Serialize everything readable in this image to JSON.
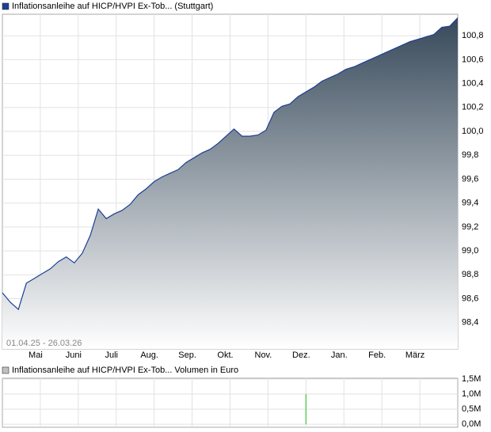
{
  "chart_data": [
    {
      "type": "area",
      "title": "Inflationsanleihe auf HICP/HVPI Ex-Tob... (Stuttgart)",
      "range_label": "01.04.25 - 26.03.26",
      "month_labels": [
        "Mai",
        "Juni",
        "Juli",
        "Aug.",
        "Sep.",
        "Okt.",
        "Nov.",
        "Dez.",
        "Jan.",
        "Feb.",
        "März"
      ],
      "values": [
        98.65,
        98.57,
        98.51,
        98.73,
        98.77,
        98.81,
        98.85,
        98.91,
        98.95,
        98.9,
        98.98,
        99.13,
        99.35,
        99.27,
        99.31,
        99.34,
        99.39,
        99.47,
        99.52,
        99.58,
        99.62,
        99.65,
        99.68,
        99.74,
        99.78,
        99.82,
        99.85,
        99.9,
        99.96,
        100.02,
        99.96,
        99.96,
        99.97,
        100.01,
        100.16,
        100.21,
        100.23,
        100.29,
        100.33,
        100.37,
        100.42,
        100.45,
        100.48,
        100.52,
        100.54,
        100.57,
        100.6,
        100.63,
        100.66,
        100.69,
        100.72,
        100.75,
        100.77,
        100.79,
        100.81,
        100.87,
        100.88,
        100.95
      ],
      "color": "#1c3f94",
      "legend_color": "#1c3f94",
      "ylim": [
        98.18,
        100.98
      ],
      "yticks": [
        {
          "value": 98.4,
          "label": "98,4"
        },
        {
          "value": 98.6,
          "label": "98,6"
        },
        {
          "value": 98.8,
          "label": "98,8"
        },
        {
          "value": 99.0,
          "label": "99,0"
        },
        {
          "value": 99.2,
          "label": "99,2"
        },
        {
          "value": 99.4,
          "label": "99,4"
        },
        {
          "value": 99.6,
          "label": "99,6"
        },
        {
          "value": 99.8,
          "label": "99,8"
        },
        {
          "value": 100.0,
          "label": "100,0"
        },
        {
          "value": 100.2,
          "label": "100,2"
        },
        {
          "value": 100.4,
          "label": "100,4"
        },
        {
          "value": 100.6,
          "label": "100,6"
        },
        {
          "value": 100.8,
          "label": "100,8"
        }
      ],
      "grid": true
    },
    {
      "type": "bar",
      "title": "Inflationsanleihe auf HICP/HVPI Ex-Tob... Volumen in Euro",
      "values": [
        0,
        0,
        0,
        0,
        0,
        0,
        0,
        0,
        0,
        0,
        0,
        0,
        0,
        0,
        0,
        0,
        0,
        0,
        0,
        0,
        0,
        0,
        0,
        0,
        0,
        0,
        0,
        0,
        0,
        0,
        0,
        0,
        0,
        0,
        0,
        0,
        0,
        0,
        1000000,
        0,
        0,
        0,
        0,
        0,
        0,
        0,
        0,
        0,
        0,
        0,
        0,
        0,
        0,
        0,
        0,
        0,
        0,
        0
      ],
      "color": "#3cc83c",
      "legend_color": "#c0c0c0",
      "ylim": [
        -100000,
        1525000
      ],
      "yticks": [
        {
          "value": 0,
          "label": "0,0M"
        },
        {
          "value": 500000,
          "label": "0,5M"
        },
        {
          "value": 1000000,
          "label": "1,0M"
        },
        {
          "value": 1500000,
          "label": "1,5M"
        }
      ],
      "grid": true
    }
  ]
}
